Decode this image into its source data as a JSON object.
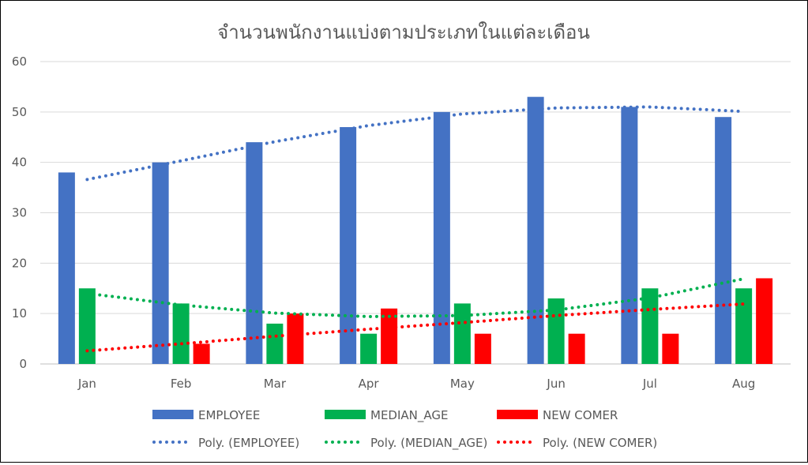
{
  "chart_data": {
    "type": "bar",
    "title": "จำนวนพนักงานแบ่งตามประเภทในแต่ละเดือน",
    "xlabel": "",
    "ylabel": "",
    "ylim": [
      0,
      60
    ],
    "yticks": [
      0,
      10,
      20,
      30,
      40,
      50,
      60
    ],
    "grid": true,
    "legend_position": "bottom",
    "categories": [
      "Jan",
      "Feb",
      "Mar",
      "Apr",
      "May",
      "Jun",
      "Jul",
      "Aug"
    ],
    "series": [
      {
        "name": "EMPLOYEE",
        "color": "#4472C4",
        "values": [
          38,
          40,
          44,
          47,
          50,
          53,
          51,
          49
        ]
      },
      {
        "name": "MEDIAN_AGE",
        "color": "#00B050",
        "values": [
          15,
          12,
          8,
          6,
          12,
          13,
          15,
          15
        ]
      },
      {
        "name": "NEW COMER",
        "color": "#FF0000",
        "values": [
          0,
          4,
          10,
          11,
          6,
          6,
          6,
          17
        ]
      }
    ],
    "trendlines": [
      {
        "name": "Poly. (EMPLOYEE)",
        "color": "#4472C4",
        "style": "dotted",
        "values": [
          36.6,
          40.3,
          44.1,
          47.3,
          49.6,
          50.8,
          51.0,
          50.1
        ]
      },
      {
        "name": "Poly. (MEDIAN_AGE)",
        "color": "#00B050",
        "style": "dotted",
        "values": [
          14.0,
          11.7,
          10.1,
          9.4,
          9.6,
          10.7,
          13.1,
          16.9
        ]
      },
      {
        "name": "Poly. (NEW COMER)",
        "color": "#FF0000",
        "style": "dotted",
        "values": [
          2.6,
          4.0,
          5.5,
          6.9,
          8.2,
          9.6,
          10.8,
          11.9
        ]
      }
    ]
  }
}
